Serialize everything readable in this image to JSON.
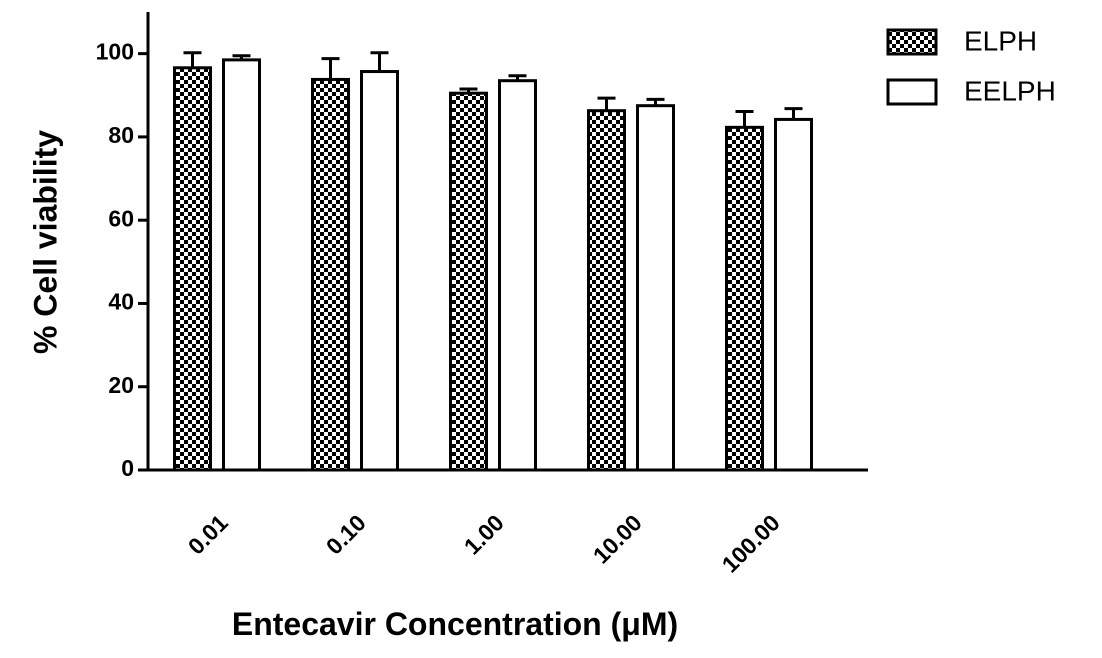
{
  "chart_data": {
    "type": "bar",
    "x_label": "Entecavir Concentration (μM)",
    "y_label": "% Cell viability",
    "categories": [
      "0.01",
      "0.10",
      "1.00",
      "10.00",
      "100.00"
    ],
    "series": [
      {
        "name": "ELPH",
        "color": "#000000",
        "pattern": "checker",
        "values": [
          96.6,
          93.8,
          90.5,
          86.3,
          82.3
        ],
        "errors": [
          3.6,
          5,
          1,
          3,
          3.8
        ]
      },
      {
        "name": "EELPH",
        "color": "#ffffff",
        "pattern": "solid",
        "values": [
          98.5,
          95.7,
          93.5,
          87.5,
          84.2
        ],
        "errors": [
          1,
          4.5,
          1.2,
          1.5,
          2.6
        ]
      }
    ],
    "ylim": [
      0,
      110
    ],
    "yticks": [
      0,
      20,
      40,
      60,
      80,
      100
    ],
    "grid": false,
    "legend": "top-right"
  }
}
